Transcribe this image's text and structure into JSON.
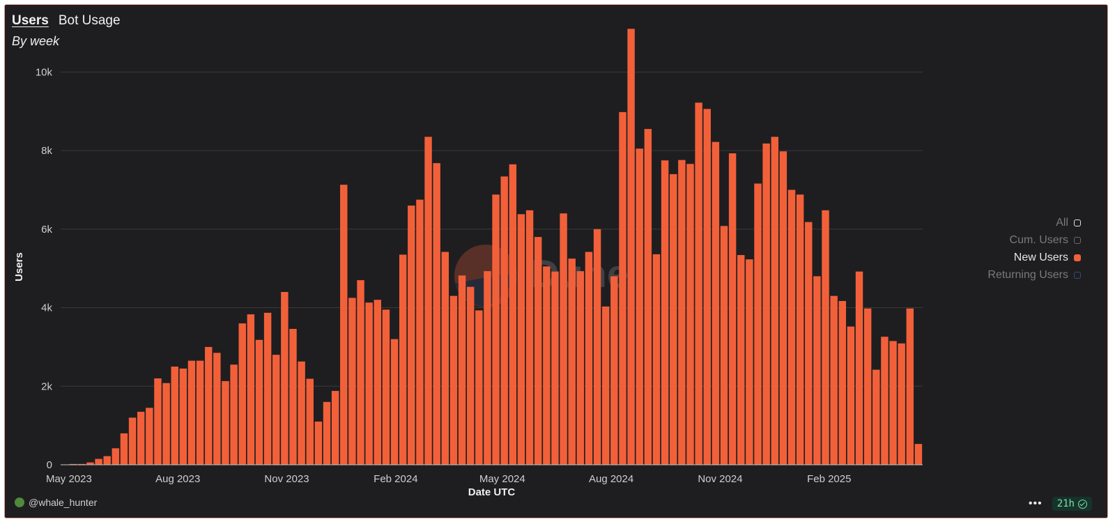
{
  "tabs": [
    {
      "label": "Users",
      "active": true
    },
    {
      "label": "Bot Usage",
      "active": false
    }
  ],
  "subtitle": "By week",
  "legend": {
    "items": [
      {
        "label": "All",
        "active": false,
        "color": "#e0e0e0"
      },
      {
        "label": "Cum. Users",
        "active": false,
        "color": "#6a6a6a"
      },
      {
        "label": "New Users",
        "active": true,
        "color": "#f2603a"
      },
      {
        "label": "Returning Users",
        "active": false,
        "color": "#3a4a7a"
      }
    ]
  },
  "footer": {
    "user": "@whale_hunter",
    "freshness": "21h"
  },
  "icons": {
    "more": "more-dots-icon",
    "check": "check-circle-icon",
    "avatar": "avatar-icon"
  },
  "chart_data": {
    "type": "bar",
    "xlabel": "Date UTC",
    "ylabel": "Users",
    "ylim": [
      0,
      11000
    ],
    "yticks": [
      0,
      2000,
      4000,
      6000,
      8000,
      10000
    ],
    "ytick_labels": [
      "0",
      "2k",
      "4k",
      "6k",
      "8k",
      "10k"
    ],
    "x_start": "2023-04-24",
    "x_end": "2025-04-21",
    "xtick_labels": [
      {
        "date": "2023-05-01",
        "label": "May 2023"
      },
      {
        "date": "2023-08-01",
        "label": "Aug 2023"
      },
      {
        "date": "2023-11-01",
        "label": "Nov 2023"
      },
      {
        "date": "2024-02-01",
        "label": "Feb 2024"
      },
      {
        "date": "2024-05-01",
        "label": "May 2024"
      },
      {
        "date": "2024-08-01",
        "label": "Aug 2024"
      },
      {
        "date": "2024-11-01",
        "label": "Nov 2024"
      },
      {
        "date": "2025-02-01",
        "label": "Feb 2025"
      }
    ],
    "grid": true,
    "legend": "right",
    "series": [
      {
        "name": "New Users",
        "color": "#f2603a",
        "values": [
          0,
          20,
          20,
          60,
          150,
          220,
          420,
          800,
          1200,
          1350,
          1450,
          2200,
          2080,
          2500,
          2450,
          2650,
          2650,
          3000,
          2850,
          2130,
          2550,
          3600,
          3830,
          3180,
          3870,
          2800,
          4400,
          3460,
          2630,
          2190,
          1100,
          1600,
          1880,
          7130,
          4250,
          4700,
          4130,
          4200,
          3950,
          3200,
          5350,
          6600,
          6750,
          8350,
          7680,
          5420,
          4300,
          4820,
          4530,
          3930,
          4930,
          6880,
          7340,
          7650,
          6380,
          6480,
          5800,
          5050,
          4920,
          6400,
          5250,
          4930,
          5420,
          6000,
          4030,
          4800,
          8980,
          11100,
          8050,
          8550,
          5360,
          7750,
          7400,
          7760,
          7660,
          9220,
          9060,
          8220,
          6080,
          7930,
          5340,
          5230,
          7160,
          8180,
          8350,
          7980,
          7000,
          6880,
          6180,
          4800,
          6480,
          4300,
          4170,
          3520,
          4920,
          3980,
          2420,
          3260,
          3150,
          3090,
          3980,
          530
        ]
      }
    ]
  }
}
